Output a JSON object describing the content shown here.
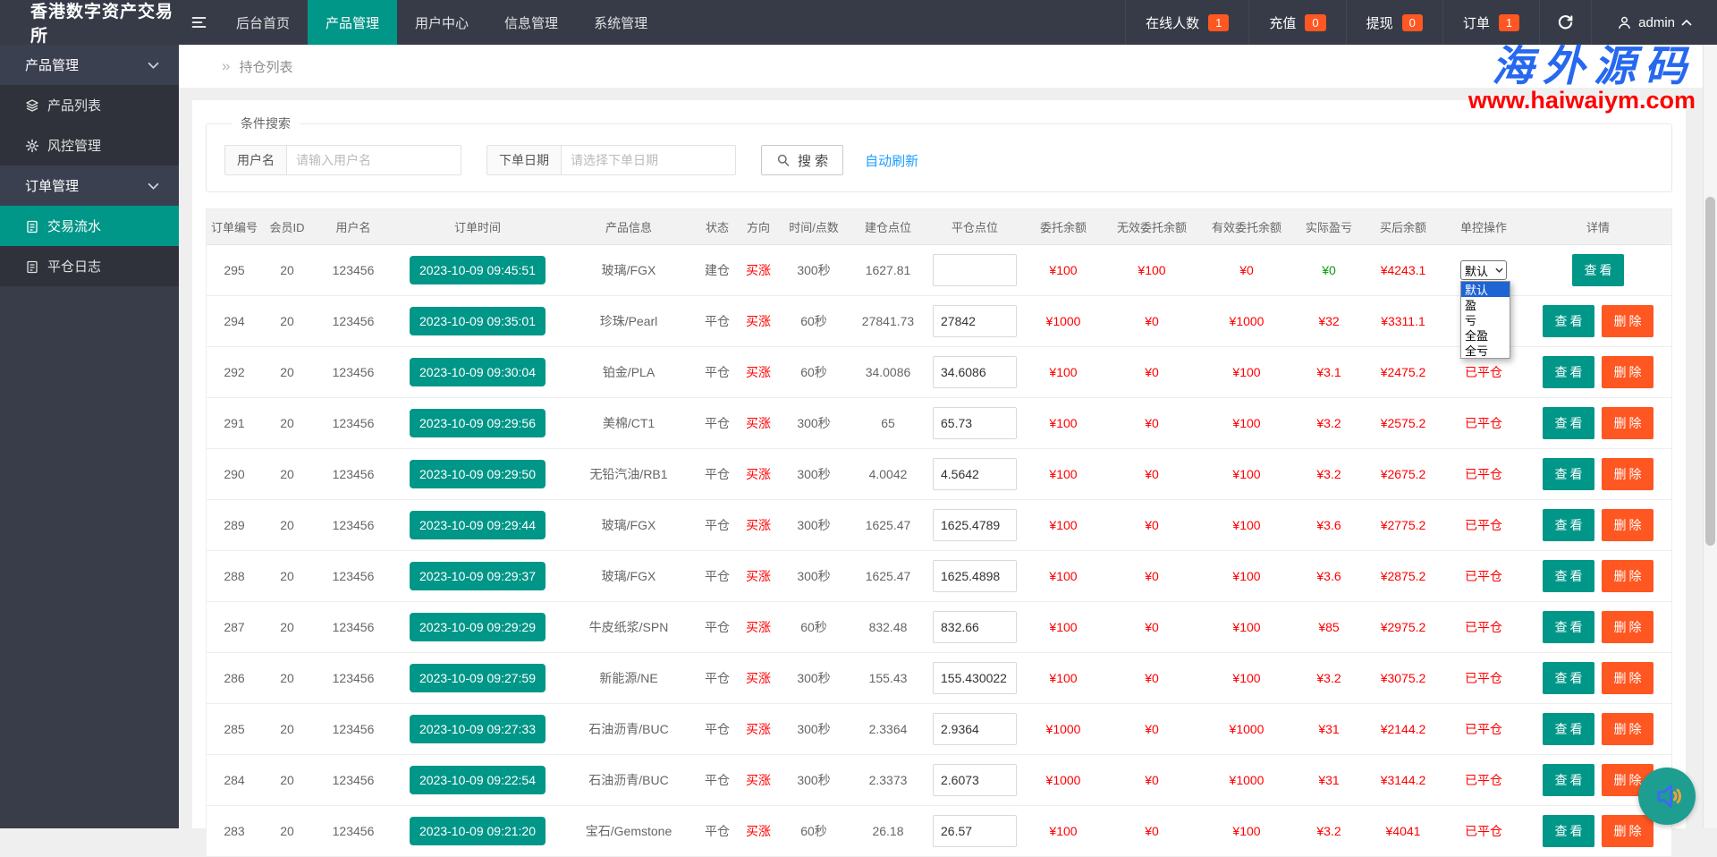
{
  "header": {
    "logo": "香港数字资产交易所",
    "tabs": [
      {
        "label": "后台首页",
        "active": false
      },
      {
        "label": "产品管理",
        "active": true
      },
      {
        "label": "用户中心",
        "active": false
      },
      {
        "label": "信息管理",
        "active": false
      },
      {
        "label": "系统管理",
        "active": false
      }
    ],
    "stats": [
      {
        "label": "在线人数",
        "count": "1"
      },
      {
        "label": "充值",
        "count": "0"
      },
      {
        "label": "提现",
        "count": "0"
      },
      {
        "label": "订单",
        "count": "1"
      }
    ],
    "user": {
      "name": "admin"
    }
  },
  "sidebar": {
    "groups": [
      {
        "label": "产品管理",
        "items": [
          {
            "label": "产品列表",
            "icon": "layers-icon",
            "active": false
          },
          {
            "label": "风控管理",
            "icon": "gear-icon",
            "active": false
          }
        ]
      },
      {
        "label": "订单管理",
        "items": [
          {
            "label": "交易流水",
            "icon": "document-icon",
            "active": true
          },
          {
            "label": "平仓日志",
            "icon": "document-icon",
            "active": false
          }
        ]
      }
    ]
  },
  "breadcrumb": {
    "arrow": "»",
    "title": "持仓列表"
  },
  "watermark": {
    "title": "海外源码",
    "url": "www.haiwaiym.com"
  },
  "search": {
    "legend": "条件搜索",
    "username_label": "用户名",
    "username_placeholder": "请输入用户名",
    "username_value": "",
    "date_label": "下单日期",
    "date_placeholder": "请选择下单日期",
    "date_value": "",
    "search_button": "搜 索",
    "auto_refresh": "自动刷新"
  },
  "control_dropdown": {
    "value": "默认",
    "selected": "默认",
    "options": [
      "默认",
      "盈",
      "亏",
      "全盈",
      "全亏"
    ]
  },
  "table": {
    "columns": [
      "订单编号",
      "会员ID",
      "用户名",
      "订单时间",
      "产品信息",
      "状态",
      "方向",
      "时间/点数",
      "建仓点位",
      "平仓点位",
      "委托余额",
      "无效委托余额",
      "有效委托余额",
      "实际盈亏",
      "买后余额",
      "单控操作",
      "详情"
    ],
    "view_label": "查看",
    "delete_label": "删除",
    "closed_status": "已平仓",
    "rows": [
      {
        "id": "295",
        "member": "20",
        "user": "123456",
        "time": "2023-10-09 09:45:51",
        "product": "玻璃/FGX",
        "status": "建仓",
        "direction": "买涨",
        "duration": "300秒",
        "open": "1627.81",
        "close": "",
        "entrust": "¥100",
        "invalid": "¥100",
        "valid": "¥0",
        "profit": "¥0",
        "profit_green": true,
        "balance": "¥4243.1",
        "op": "select",
        "has_delete": false
      },
      {
        "id": "294",
        "member": "20",
        "user": "123456",
        "time": "2023-10-09 09:35:01",
        "product": "珍珠/Pearl",
        "status": "平仓",
        "direction": "买涨",
        "duration": "60秒",
        "open": "27841.73",
        "close": "27842",
        "entrust": "¥1000",
        "invalid": "¥0",
        "valid": "¥1000",
        "profit": "¥32",
        "profit_green": false,
        "balance": "¥3311.1",
        "op": ""
      },
      {
        "id": "292",
        "member": "20",
        "user": "123456",
        "time": "2023-10-09 09:30:04",
        "product": "铂金/PLA",
        "status": "平仓",
        "direction": "买涨",
        "duration": "60秒",
        "open": "34.0086",
        "close": "34.6086",
        "entrust": "¥100",
        "invalid": "¥0",
        "valid": "¥100",
        "profit": "¥3.1",
        "profit_green": false,
        "balance": "¥2475.2",
        "op": "已平仓"
      },
      {
        "id": "291",
        "member": "20",
        "user": "123456",
        "time": "2023-10-09 09:29:56",
        "product": "美棉/CT1",
        "status": "平仓",
        "direction": "买涨",
        "duration": "300秒",
        "open": "65",
        "close": "65.73",
        "entrust": "¥100",
        "invalid": "¥0",
        "valid": "¥100",
        "profit": "¥3.2",
        "profit_green": false,
        "balance": "¥2575.2",
        "op": "已平仓"
      },
      {
        "id": "290",
        "member": "20",
        "user": "123456",
        "time": "2023-10-09 09:29:50",
        "product": "无铅汽油/RB1",
        "status": "平仓",
        "direction": "买涨",
        "duration": "300秒",
        "open": "4.0042",
        "close": "4.5642",
        "entrust": "¥100",
        "invalid": "¥0",
        "valid": "¥100",
        "profit": "¥3.2",
        "profit_green": false,
        "balance": "¥2675.2",
        "op": "已平仓"
      },
      {
        "id": "289",
        "member": "20",
        "user": "123456",
        "time": "2023-10-09 09:29:44",
        "product": "玻璃/FGX",
        "status": "平仓",
        "direction": "买涨",
        "duration": "300秒",
        "open": "1625.47",
        "close": "1625.4789",
        "entrust": "¥100",
        "invalid": "¥0",
        "valid": "¥100",
        "profit": "¥3.6",
        "profit_green": false,
        "balance": "¥2775.2",
        "op": "已平仓"
      },
      {
        "id": "288",
        "member": "20",
        "user": "123456",
        "time": "2023-10-09 09:29:37",
        "product": "玻璃/FGX",
        "status": "平仓",
        "direction": "买涨",
        "duration": "300秒",
        "open": "1625.47",
        "close": "1625.4898",
        "entrust": "¥100",
        "invalid": "¥0",
        "valid": "¥100",
        "profit": "¥3.6",
        "profit_green": false,
        "balance": "¥2875.2",
        "op": "已平仓"
      },
      {
        "id": "287",
        "member": "20",
        "user": "123456",
        "time": "2023-10-09 09:29:29",
        "product": "牛皮纸浆/SPN",
        "status": "平仓",
        "direction": "买涨",
        "duration": "60秒",
        "open": "832.48",
        "close": "832.66",
        "entrust": "¥100",
        "invalid": "¥0",
        "valid": "¥100",
        "profit": "¥85",
        "profit_green": false,
        "balance": "¥2975.2",
        "op": "已平仓"
      },
      {
        "id": "286",
        "member": "20",
        "user": "123456",
        "time": "2023-10-09 09:27:59",
        "product": "新能源/NE",
        "status": "平仓",
        "direction": "买涨",
        "duration": "300秒",
        "open": "155.43",
        "close": "155.430022",
        "entrust": "¥100",
        "invalid": "¥0",
        "valid": "¥100",
        "profit": "¥3.2",
        "profit_green": false,
        "balance": "¥3075.2",
        "op": "已平仓"
      },
      {
        "id": "285",
        "member": "20",
        "user": "123456",
        "time": "2023-10-09 09:27:33",
        "product": "石油沥青/BUC",
        "status": "平仓",
        "direction": "买涨",
        "duration": "300秒",
        "open": "2.3364",
        "close": "2.9364",
        "entrust": "¥1000",
        "invalid": "¥0",
        "valid": "¥1000",
        "profit": "¥31",
        "profit_green": false,
        "balance": "¥2144.2",
        "op": "已平仓"
      },
      {
        "id": "284",
        "member": "20",
        "user": "123456",
        "time": "2023-10-09 09:22:54",
        "product": "石油沥青/BUC",
        "status": "平仓",
        "direction": "买涨",
        "duration": "300秒",
        "open": "2.3373",
        "close": "2.6073",
        "entrust": "¥1000",
        "invalid": "¥0",
        "valid": "¥1000",
        "profit": "¥31",
        "profit_green": false,
        "balance": "¥3144.2",
        "op": "已平仓"
      },
      {
        "id": "283",
        "member": "20",
        "user": "123456",
        "time": "2023-10-09 09:21:20",
        "product": "宝石/Gemstone",
        "status": "平仓",
        "direction": "买涨",
        "duration": "60秒",
        "open": "26.18",
        "close": "26.57",
        "entrust": "¥100",
        "invalid": "¥0",
        "valid": "¥100",
        "profit": "¥3.2",
        "profit_green": false,
        "balance": "¥4041",
        "op": "已平仓"
      }
    ]
  },
  "colors": {
    "nav_bg": "#363b47",
    "accent_teal": "#009688",
    "badge_orange": "#ff5722",
    "value_red": "#ff0000",
    "profit_green": "#0a9c0a",
    "link_blue": "#1e9fff",
    "option_highlight": "#1e64d2",
    "watermark_blue": "#2668f0"
  }
}
